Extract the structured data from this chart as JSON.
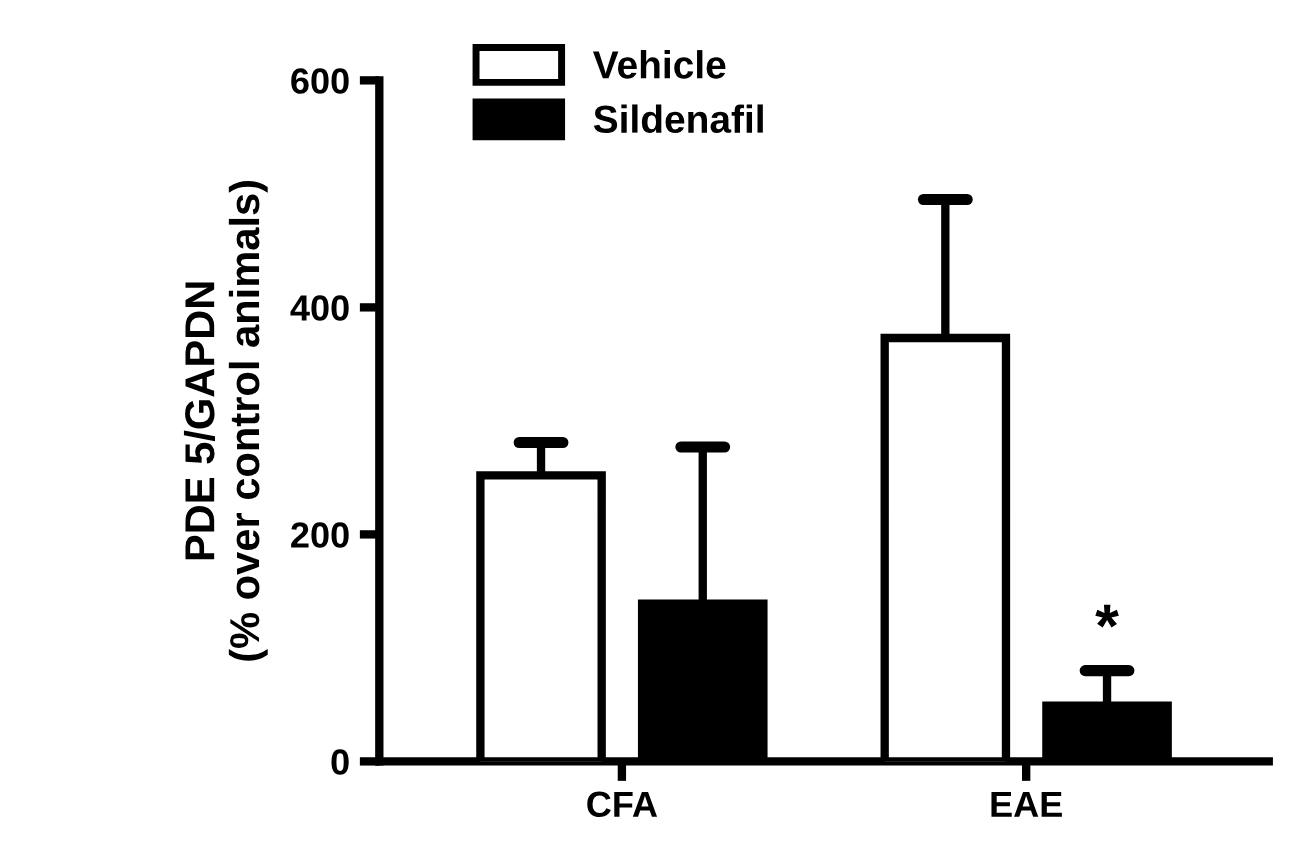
{
  "chart_data": {
    "type": "bar",
    "ylabel": "PDE 5/GAPDN\n(% over control animals)",
    "categories": [
      "CFA",
      "EAE"
    ],
    "series": [
      {
        "name": "Vehicle",
        "color": "#ffffff",
        "values": [
          252,
          373
        ],
        "errors": [
          [
            252,
            281
          ],
          [
            373,
            495
          ]
        ]
      },
      {
        "name": "Sildenafil",
        "color": "#000000",
        "values": [
          139,
          49
        ],
        "errors": [
          [
            139,
            277
          ],
          [
            49,
            80
          ]
        ]
      }
    ],
    "annotations": [
      "*"
    ],
    "ylim": [
      0,
      600
    ],
    "yticks": [
      0,
      200,
      400,
      600
    ],
    "grid": false,
    "legend": "top left"
  }
}
